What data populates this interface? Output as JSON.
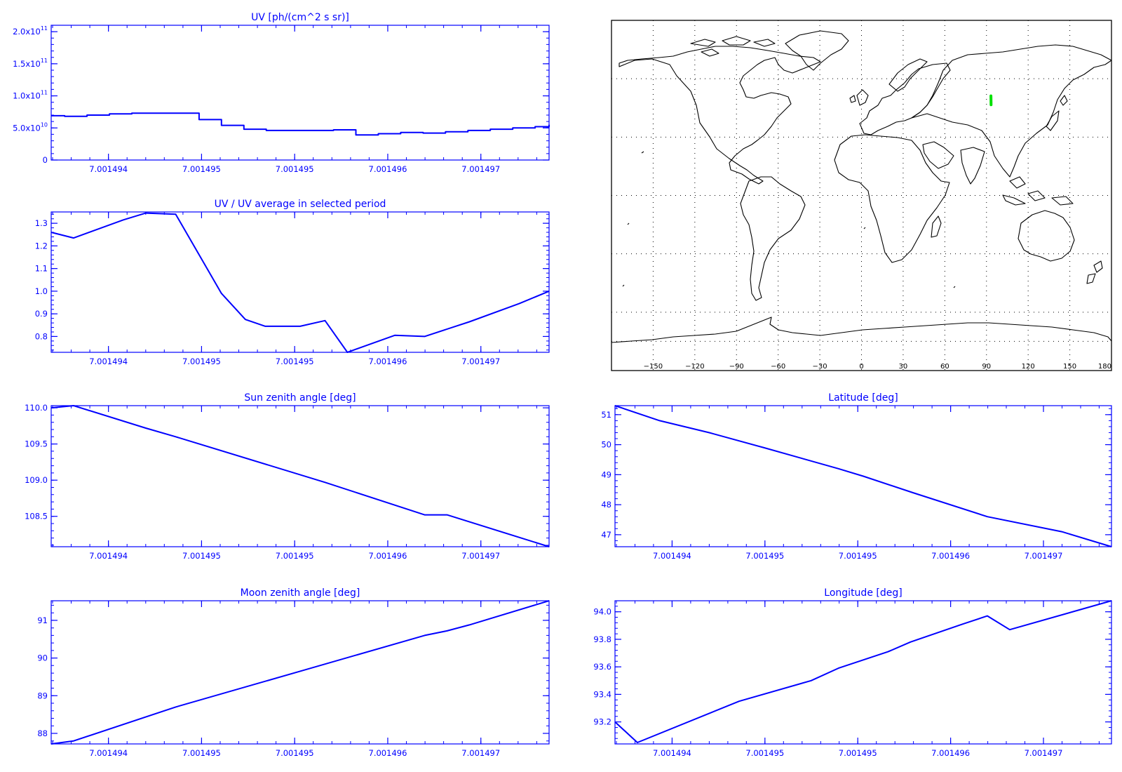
{
  "figure": {
    "colors": {
      "axes": "#0000ff",
      "series": "#0000ff",
      "map_lines": "#000000",
      "track": "#00e000"
    }
  },
  "map": {
    "projection": "cylindrical",
    "lon_range": [
      -180,
      180
    ],
    "lat_range": [
      -90,
      90
    ],
    "grid": "dotted",
    "lon_ticks": [
      -150,
      -120,
      -90,
      -60,
      -30,
      0,
      30,
      60,
      90,
      120,
      150,
      180
    ],
    "lat_grid": [
      -75,
      -60,
      -30,
      0,
      30,
      60
    ],
    "track": {
      "lon": [
        93.2,
        93.3
      ],
      "lat": [
        51.2,
        46.6
      ]
    }
  },
  "chart_data": [
    {
      "type": "line",
      "step": true,
      "title": "UV [ph/(cm^2 s sr)]",
      "xlabel": "",
      "ylabel": "",
      "xlim": [
        0,
        1
      ],
      "ylim": [
        0,
        210000000000.0
      ],
      "x_ticks": [
        0.115,
        0.302,
        0.489,
        0.676,
        0.863
      ],
      "x_tick_labels": [
        "7.001494",
        "7.001495",
        "7.001495",
        "7.001496",
        "7.001497"
      ],
      "y_ticks": [
        0,
        50000000000.0,
        100000000000.0,
        150000000000.0,
        200000000000.0
      ],
      "y_tick_labels": [
        {
          "base": "0",
          "exp": ""
        },
        {
          "base": "5.0x10",
          "exp": "10"
        },
        {
          "base": "1.0x10",
          "exp": "11"
        },
        {
          "base": "1.5x10",
          "exp": "11"
        },
        {
          "base": "2.0x10",
          "exp": "11"
        }
      ],
      "series": [
        {
          "x": [
            0,
            0.027,
            0.072,
            0.117,
            0.162,
            0.207,
            0.252,
            0.297,
            0.342,
            0.387,
            0.432,
            0.477,
            0.522,
            0.567,
            0.612,
            0.657,
            0.702,
            0.747,
            0.792,
            0.837,
            0.882,
            0.927,
            0.972,
            1.0
          ],
          "values": [
            69000000000.0,
            68000000000.0,
            70000000000.0,
            72000000000.0,
            73000000000.0,
            73000000000.0,
            73000000000.0,
            63000000000.0,
            54000000000.0,
            48000000000.0,
            46000000000.0,
            46000000000.0,
            46000000000.0,
            47000000000.0,
            39000000000.0,
            41000000000.0,
            43000000000.0,
            42000000000.0,
            44000000000.0,
            46000000000.0,
            48000000000.0,
            50000000000.0,
            52000000000.0,
            55000000000.0
          ]
        }
      ]
    },
    {
      "type": "line",
      "title": "UV / UV average in selected period",
      "xlabel": "",
      "ylabel": "",
      "xlim": [
        0,
        1
      ],
      "ylim": [
        0.73,
        1.35
      ],
      "x_ticks": [
        0.115,
        0.302,
        0.489,
        0.676,
        0.863
      ],
      "x_tick_labels": [
        "7.001494",
        "7.001495",
        "7.001495",
        "7.001496",
        "7.001497"
      ],
      "y_ticks": [
        0.8,
        0.9,
        1.0,
        1.1,
        1.2,
        1.3
      ],
      "y_tick_labels": [
        "0.8",
        "0.9",
        "1.0",
        "1.1",
        "1.2",
        "1.3"
      ],
      "series": [
        {
          "x": [
            0,
            0.045,
            0.145,
            0.19,
            0.25,
            0.342,
            0.39,
            0.43,
            0.5,
            0.55,
            0.595,
            0.69,
            0.75,
            0.84,
            0.94,
            1.0
          ],
          "values": [
            1.26,
            1.235,
            1.315,
            1.345,
            1.34,
            0.99,
            0.875,
            0.845,
            0.845,
            0.87,
            0.73,
            0.805,
            0.8,
            0.865,
            0.945,
            1.0
          ]
        }
      ]
    },
    {
      "type": "line",
      "title": "Sun zenith angle [deg]",
      "xlabel": "",
      "ylabel": "",
      "xlim": [
        0,
        1
      ],
      "ylim": [
        108.08,
        110.03
      ],
      "x_ticks": [
        0.115,
        0.302,
        0.489,
        0.676,
        0.863
      ],
      "x_tick_labels": [
        "7.001494",
        "7.001495",
        "7.001495",
        "7.001496",
        "7.001497"
      ],
      "y_ticks": [
        108.5,
        109.0,
        109.5,
        110.0
      ],
      "y_tick_labels": [
        "108.5",
        "109.0",
        "109.5",
        "110.0"
      ],
      "series": [
        {
          "x": [
            0,
            0.045,
            0.19,
            0.25,
            0.55,
            0.75,
            0.795,
            1.0
          ],
          "values": [
            110.0,
            110.03,
            109.72,
            109.6,
            108.97,
            108.52,
            108.52,
            108.08
          ]
        }
      ]
    },
    {
      "type": "line",
      "title": "Latitude [deg]",
      "xlabel": "",
      "ylabel": "",
      "xlim": [
        0,
        1
      ],
      "ylim": [
        46.6,
        51.3
      ],
      "x_ticks": [
        0.115,
        0.302,
        0.489,
        0.676,
        0.863
      ],
      "x_tick_labels": [
        "7.001494",
        "7.001495",
        "7.001495",
        "7.001496",
        "7.001497"
      ],
      "y_ticks": [
        47,
        48,
        49,
        50,
        51
      ],
      "y_tick_labels": [
        "47",
        "48",
        "49",
        "50",
        "51"
      ],
      "series": [
        {
          "x": [
            0,
            0.09,
            0.19,
            0.3,
            0.45,
            0.5,
            0.6,
            0.75,
            0.9,
            1.0
          ],
          "values": [
            51.3,
            50.8,
            50.4,
            49.9,
            49.2,
            48.95,
            48.4,
            47.6,
            47.1,
            46.6
          ]
        }
      ]
    },
    {
      "type": "line",
      "title": "Moon zenith angle [deg]",
      "xlabel": "",
      "ylabel": "",
      "xlim": [
        0,
        1
      ],
      "ylim": [
        87.72,
        91.52
      ],
      "x_ticks": [
        0.115,
        0.302,
        0.489,
        0.676,
        0.863
      ],
      "x_tick_labels": [
        "7.001494",
        "7.001495",
        "7.001495",
        "7.001496",
        "7.001497"
      ],
      "y_ticks": [
        88,
        89,
        90,
        91
      ],
      "y_tick_labels": [
        "88",
        "89",
        "90",
        "91"
      ],
      "series": [
        {
          "x": [
            0,
            0.045,
            0.25,
            0.5,
            0.75,
            0.795,
            0.84,
            1.0
          ],
          "values": [
            87.72,
            87.8,
            88.7,
            89.65,
            90.6,
            90.72,
            90.88,
            91.52
          ]
        }
      ]
    },
    {
      "type": "line",
      "title": "Longitude [deg]",
      "xlabel": "",
      "ylabel": "",
      "xlim": [
        0,
        1
      ],
      "ylim": [
        93.04,
        94.08
      ],
      "x_ticks": [
        0.115,
        0.302,
        0.489,
        0.676,
        0.863
      ],
      "x_tick_labels": [
        "7.001494",
        "7.001495",
        "7.001495",
        "7.001496",
        "7.001497"
      ],
      "y_ticks": [
        93.2,
        93.4,
        93.6,
        93.8,
        94.0
      ],
      "y_tick_labels": [
        "93.2",
        "93.4",
        "93.6",
        "93.8",
        "94.0"
      ],
      "series": [
        {
          "x": [
            0,
            0.045,
            0.25,
            0.395,
            0.45,
            0.55,
            0.595,
            0.7,
            0.75,
            0.795,
            1.0
          ],
          "values": [
            93.2,
            93.05,
            93.35,
            93.5,
            93.59,
            93.71,
            93.78,
            93.91,
            93.97,
            93.87,
            94.08
          ]
        }
      ]
    }
  ]
}
